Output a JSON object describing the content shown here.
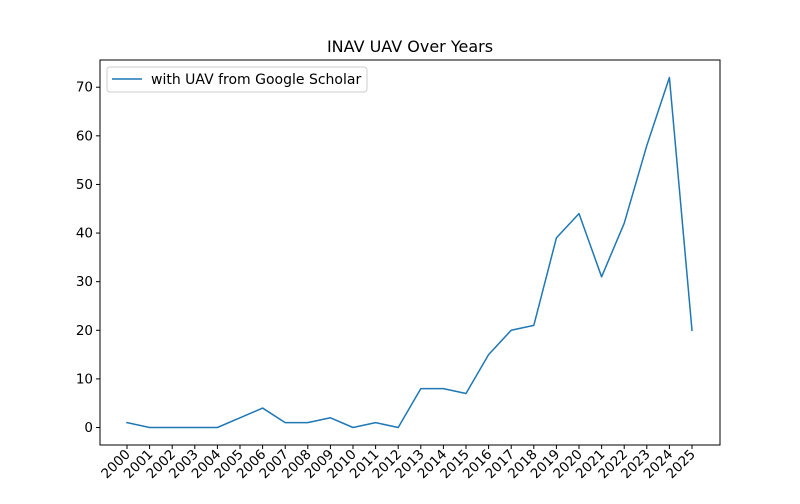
{
  "chart_data": {
    "type": "line",
    "title": "INAV UAV Over Years",
    "xlabel": "",
    "ylabel": "",
    "x": [
      "2000",
      "2001",
      "2002",
      "2003",
      "2004",
      "2005",
      "2006",
      "2007",
      "2008",
      "2009",
      "2010",
      "2011",
      "2012",
      "2013",
      "2014",
      "2015",
      "2016",
      "2017",
      "2018",
      "2019",
      "2020",
      "2021",
      "2022",
      "2023",
      "2024",
      "2025"
    ],
    "series": [
      {
        "name": "with UAV from Google Scholar",
        "color": "#1f77b4",
        "values": [
          1,
          0,
          0,
          0,
          0,
          2,
          4,
          1,
          1,
          2,
          0,
          1,
          0,
          8,
          8,
          7,
          15,
          20,
          21,
          39,
          44,
          31,
          42,
          58,
          72,
          20
        ]
      }
    ],
    "ylim": [
      -3.6,
      75.6
    ],
    "yticks": [
      0,
      10,
      20,
      30,
      40,
      50,
      60,
      70
    ],
    "grid": false,
    "legend_position": "upper-left"
  }
}
